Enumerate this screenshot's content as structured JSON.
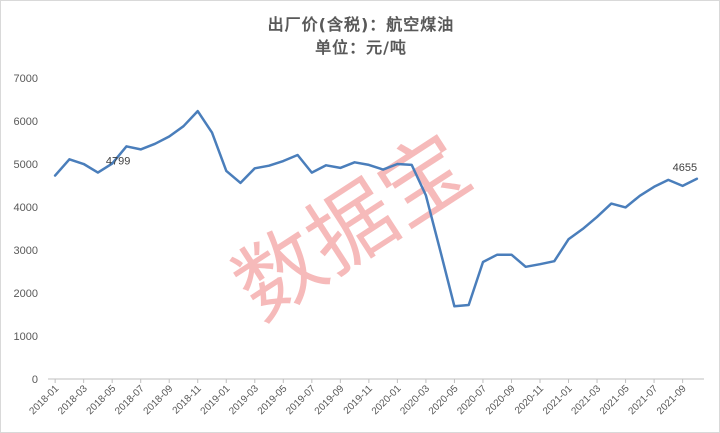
{
  "chart_data": {
    "type": "line",
    "title": "出厂价(含税)：航空煤油",
    "subtitle": "单位：元/吨",
    "xlabel": "",
    "ylabel": "",
    "ylim": [
      0,
      7000
    ],
    "yticks": [
      0,
      1000,
      2000,
      3000,
      4000,
      5000,
      6000,
      7000
    ],
    "xtick_labels": [
      "2018-01",
      "2018-03",
      "2018-05",
      "2018-07",
      "2018-09",
      "2018-11",
      "2019-01",
      "2019-03",
      "2019-05",
      "2019-07",
      "2019-09",
      "2019-11",
      "2020-01",
      "2020-03",
      "2020-05",
      "2020-07",
      "2020-09",
      "2020-11",
      "2021-01",
      "2021-03",
      "2021-05",
      "2021-07",
      "2021-09"
    ],
    "grid": false,
    "legend": "none",
    "line_color": "#4a7ebb",
    "watermark": "数据宝",
    "watermark_color": "#f08c8c",
    "series": [
      {
        "x": [
          "2018-01",
          "2018-02",
          "2018-03",
          "2018-04",
          "2018-05",
          "2018-06",
          "2018-07",
          "2018-08",
          "2018-09",
          "2018-10",
          "2018-11",
          "2018-12",
          "2019-01",
          "2019-02",
          "2019-03",
          "2019-04",
          "2019-05",
          "2019-06",
          "2019-07",
          "2019-08",
          "2019-09",
          "2019-10",
          "2019-11",
          "2019-12",
          "2020-01",
          "2020-02",
          "2020-03",
          "2020-04",
          "2020-05",
          "2020-06",
          "2020-07",
          "2020-08",
          "2020-09",
          "2020-10",
          "2020-11",
          "2020-12",
          "2021-01",
          "2021-02",
          "2021-03",
          "2021-04",
          "2021-05",
          "2021-06",
          "2021-07",
          "2021-08",
          "2021-09",
          "2021-10"
        ],
        "values": [
          4730,
          5110,
          5000,
          4799,
          5010,
          5410,
          5340,
          5470,
          5640,
          5880,
          6230,
          5730,
          4840,
          4560,
          4900,
          4960,
          5070,
          5210,
          4800,
          4970,
          4910,
          5040,
          4980,
          4870,
          5000,
          4980,
          4270,
          2990,
          1690,
          1720,
          2720,
          2890,
          2890,
          2610,
          2670,
          2740,
          3250,
          3490,
          3770,
          4080,
          3990,
          4260,
          4470,
          4630,
          4490,
          4655
        ]
      }
    ],
    "annotations": [
      {
        "x": "2018-04",
        "y": 4799,
        "text": "4799"
      },
      {
        "x": "2021-10",
        "y": 4655,
        "text": "4655"
      }
    ]
  }
}
